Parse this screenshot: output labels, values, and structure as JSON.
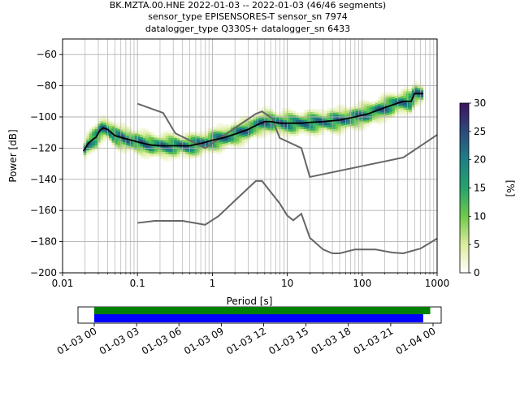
{
  "chart_data": {
    "type": "heatmap",
    "title_lines": [
      "BK.MZTA.00.HNE   2022-01-03 -- 2022-01-03  (46/46 segments)",
      "sensor_type EPISENSORES-T sensor_sn 7974",
      "datalogger_type Q330S+ datalogger_sn 6433"
    ],
    "xlabel": "Period [s]",
    "ylabel": "Power [dB]",
    "x_scale": "log",
    "xlim": [
      0.01,
      1000
    ],
    "ylim": [
      -200,
      -50
    ],
    "x_ticks": [
      {
        "v": 0.01,
        "label": "0.01"
      },
      {
        "v": 0.1,
        "label": "0.1"
      },
      {
        "v": 1,
        "label": "1"
      },
      {
        "v": 10,
        "label": "10"
      },
      {
        "v": 100,
        "label": "100"
      },
      {
        "v": 1000,
        "label": "1000"
      }
    ],
    "y_ticks": [
      {
        "v": -60,
        "label": "−60"
      },
      {
        "v": -80,
        "label": "−80"
      },
      {
        "v": -100,
        "label": "−100"
      },
      {
        "v": -120,
        "label": "−120"
      },
      {
        "v": -140,
        "label": "−140"
      },
      {
        "v": -160,
        "label": "−160"
      },
      {
        "v": -180,
        "label": "−180"
      },
      {
        "v": -200,
        "label": "−200"
      }
    ],
    "grid": true,
    "mean_curve": [
      [
        0.019,
        -122
      ],
      [
        0.022,
        -117
      ],
      [
        0.026,
        -114
      ],
      [
        0.028,
        -113
      ],
      [
        0.031,
        -109
      ],
      [
        0.035,
        -107
      ],
      [
        0.04,
        -108
      ],
      [
        0.05,
        -112
      ],
      [
        0.07,
        -114
      ],
      [
        0.1,
        -116
      ],
      [
        0.15,
        -118
      ],
      [
        0.2,
        -118.5
      ],
      [
        0.3,
        -118.5
      ],
      [
        0.5,
        -118.5
      ],
      [
        0.7,
        -117
      ],
      [
        1.0,
        -115
      ],
      [
        1.5,
        -113
      ],
      [
        2.0,
        -111
      ],
      [
        3.0,
        -108
      ],
      [
        4.0,
        -105
      ],
      [
        5.0,
        -103
      ],
      [
        6.0,
        -103
      ],
      [
        8.0,
        -104
      ],
      [
        10,
        -104
      ],
      [
        15,
        -104
      ],
      [
        20,
        -103.5
      ],
      [
        30,
        -103
      ],
      [
        50,
        -102
      ],
      [
        80,
        -100
      ],
      [
        120,
        -98
      ],
      [
        200,
        -94
      ],
      [
        350,
        -90
      ],
      [
        450,
        -90
      ],
      [
        500,
        -85
      ],
      [
        650,
        -85
      ]
    ],
    "nlnm": [
      [
        0.1,
        -168
      ],
      [
        0.17,
        -166.7
      ],
      [
        0.4,
        -166.7
      ],
      [
        0.8,
        -169.2
      ],
      [
        1.2,
        -163.7
      ],
      [
        3.8,
        -141.1
      ],
      [
        4.6,
        -141.1
      ],
      [
        6.3,
        -149.4
      ],
      [
        7.9,
        -155.4
      ],
      [
        10,
        -163.3
      ],
      [
        12,
        -166.3
      ],
      [
        15.4,
        -162.1
      ],
      [
        20,
        -177.5
      ],
      [
        30,
        -185
      ],
      [
        40,
        -187.5
      ],
      [
        50,
        -187.5
      ],
      [
        80,
        -185
      ],
      [
        150,
        -185
      ],
      [
        250,
        -187
      ],
      [
        354,
        -187.5
      ],
      [
        600,
        -184.4
      ],
      [
        1000,
        -178
      ]
    ],
    "nhnm": [
      [
        0.1,
        -91.5
      ],
      [
        0.22,
        -97.4
      ],
      [
        0.32,
        -110.5
      ],
      [
        0.8,
        -120
      ],
      [
        3.8,
        -98
      ],
      [
        4.6,
        -96.5
      ],
      [
        6.3,
        -101
      ],
      [
        7.9,
        -113.5
      ],
      [
        15.4,
        -120
      ],
      [
        20,
        -138.5
      ],
      [
        354,
        -126
      ],
      [
        1000,
        -111.5
      ]
    ],
    "colorbar": {
      "label": "[%]",
      "range": [
        0,
        30
      ],
      "ticks": [
        {
          "v": 0,
          "label": "0"
        },
        {
          "v": 5,
          "label": "5"
        },
        {
          "v": 10,
          "label": "10"
        },
        {
          "v": 15,
          "label": "15"
        },
        {
          "v": 20,
          "label": "20"
        },
        {
          "v": 25,
          "label": "25"
        },
        {
          "v": 30,
          "label": "30"
        }
      ],
      "colors": [
        "#ffffff",
        "#dcec9c",
        "#6fc94a",
        "#25a36d",
        "#1f7f86",
        "#2c4a7b",
        "#3c145f"
      ]
    },
    "colors": {
      "mean": "#000000",
      "noise_models": "#666666",
      "grid": "#b0b0b0"
    },
    "coverage": {
      "tick_labels": [
        "01-03 00",
        "01-03 03",
        "01-03 06",
        "01-03 09",
        "01-03 12",
        "01-03 15",
        "01-03 18",
        "01-03 21",
        "01-04 00"
      ],
      "data_color": "#008000",
      "psd_color": "#0000ff",
      "data_span_hours": [
        0,
        23.8
      ],
      "psd_span_hours": [
        0,
        23.3
      ]
    }
  }
}
